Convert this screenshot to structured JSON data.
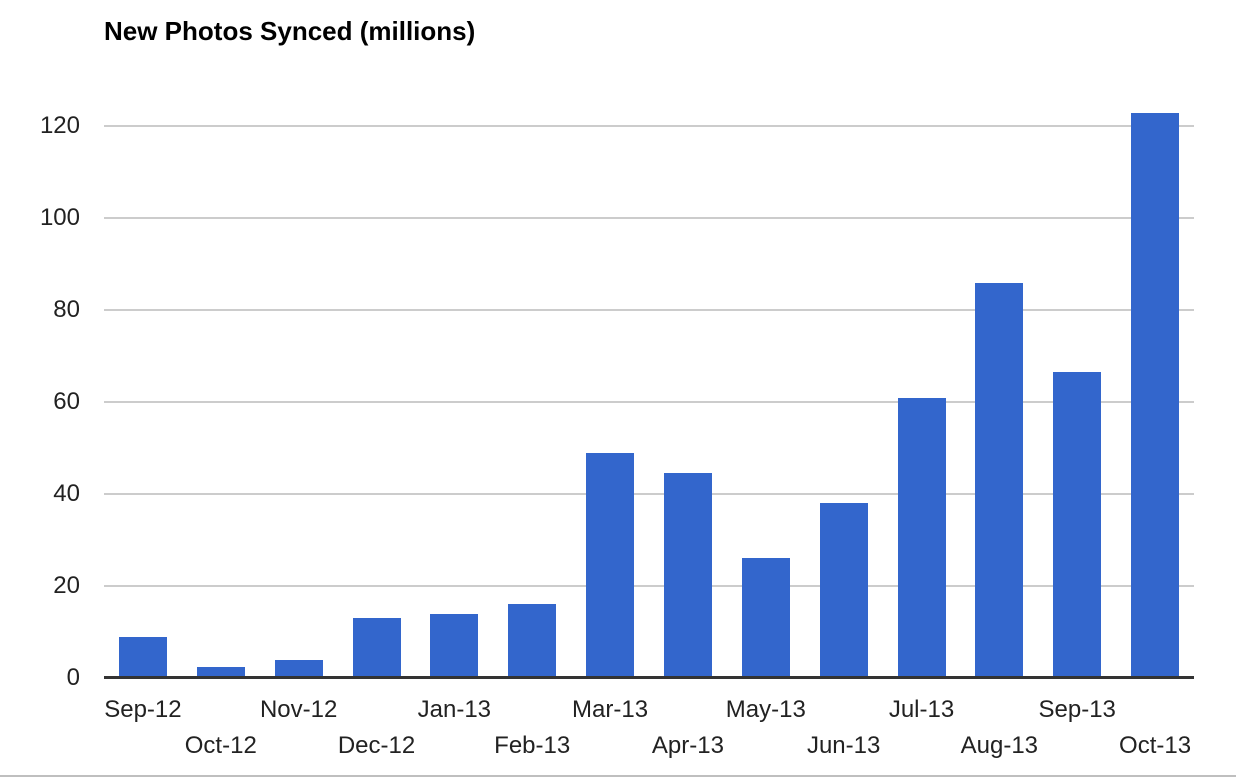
{
  "chart_data": {
    "type": "bar",
    "title": "New Photos Synced (millions)",
    "categories": [
      "Sep-12",
      "Oct-12",
      "Nov-12",
      "Dec-12",
      "Jan-13",
      "Feb-13",
      "Mar-13",
      "Apr-13",
      "May-13",
      "Jun-13",
      "Jul-13",
      "Aug-13",
      "Sep-13",
      "Oct-13"
    ],
    "values": [
      9,
      2.5,
      4,
      13,
      14,
      16,
      49,
      44.5,
      26,
      38,
      61,
      86,
      66.5,
      123
    ],
    "xlabel": "",
    "ylabel": "",
    "ylim": [
      0,
      129
    ],
    "yticks": [
      0,
      20,
      40,
      60,
      80,
      100,
      120
    ],
    "grid": true,
    "legend_position": "none",
    "x_labels_staggered": true,
    "colors": {
      "bar": "#3366cc",
      "gridline": "#cccccc",
      "axis_line": "#333333",
      "axis_label": "#222222",
      "title": "#000000",
      "background": "#ffffff",
      "bottom_divider": "#bfbfbf"
    }
  }
}
